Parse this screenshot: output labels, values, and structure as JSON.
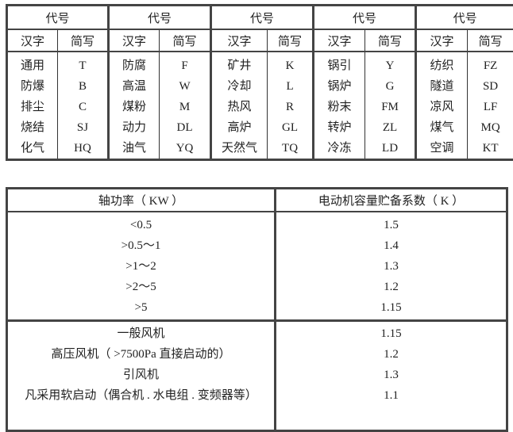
{
  "code_table": {
    "group_header": "代号",
    "sub_headers": [
      "汉字",
      "简写"
    ],
    "groups": [
      {
        "items": [
          [
            "通用",
            "T"
          ],
          [
            "防爆",
            "B"
          ],
          [
            "排尘",
            "C"
          ],
          [
            "烧结",
            "SJ"
          ],
          [
            "化气",
            "HQ"
          ]
        ]
      },
      {
        "items": [
          [
            "防腐",
            "F"
          ],
          [
            "高温",
            "W"
          ],
          [
            "煤粉",
            "M"
          ],
          [
            "动力",
            "DL"
          ],
          [
            "油气",
            "YQ"
          ]
        ]
      },
      {
        "items": [
          [
            "矿井",
            "K"
          ],
          [
            "冷却",
            "L"
          ],
          [
            "热风",
            "R"
          ],
          [
            "高炉",
            "GL"
          ],
          [
            "天然气",
            "TQ"
          ]
        ]
      },
      {
        "items": [
          [
            "锅引",
            "Y"
          ],
          [
            "锅炉",
            "G"
          ],
          [
            "粉末",
            "FM"
          ],
          [
            "转炉",
            "ZL"
          ],
          [
            "冷冻",
            "LD"
          ]
        ]
      },
      {
        "items": [
          [
            "纺织",
            "FZ"
          ],
          [
            "隧道",
            "SD"
          ],
          [
            "凉风",
            "LF"
          ],
          [
            "煤气",
            "MQ"
          ],
          [
            "空调",
            "KT"
          ]
        ]
      }
    ]
  },
  "coef_table": {
    "headers": [
      "轴功率（ KW ）",
      "电动机容量贮备系数（ K ）"
    ],
    "group1": {
      "labels": [
        "<0.5",
        ">0.5～1",
        ">1～2",
        ">2～5",
        ">5"
      ],
      "values": [
        "1.5",
        "1.4",
        "1.3",
        "1.2",
        "1.15"
      ]
    },
    "group2": {
      "labels": [
        "一般风机",
        "高压风机（ >7500Pa 直接启动的）",
        "引风机",
        "凡采用软启动（偶合机 . 水电组 . 变频器等）"
      ],
      "values": [
        "1.15",
        "1.2",
        "1.3",
        "1.1"
      ]
    }
  }
}
